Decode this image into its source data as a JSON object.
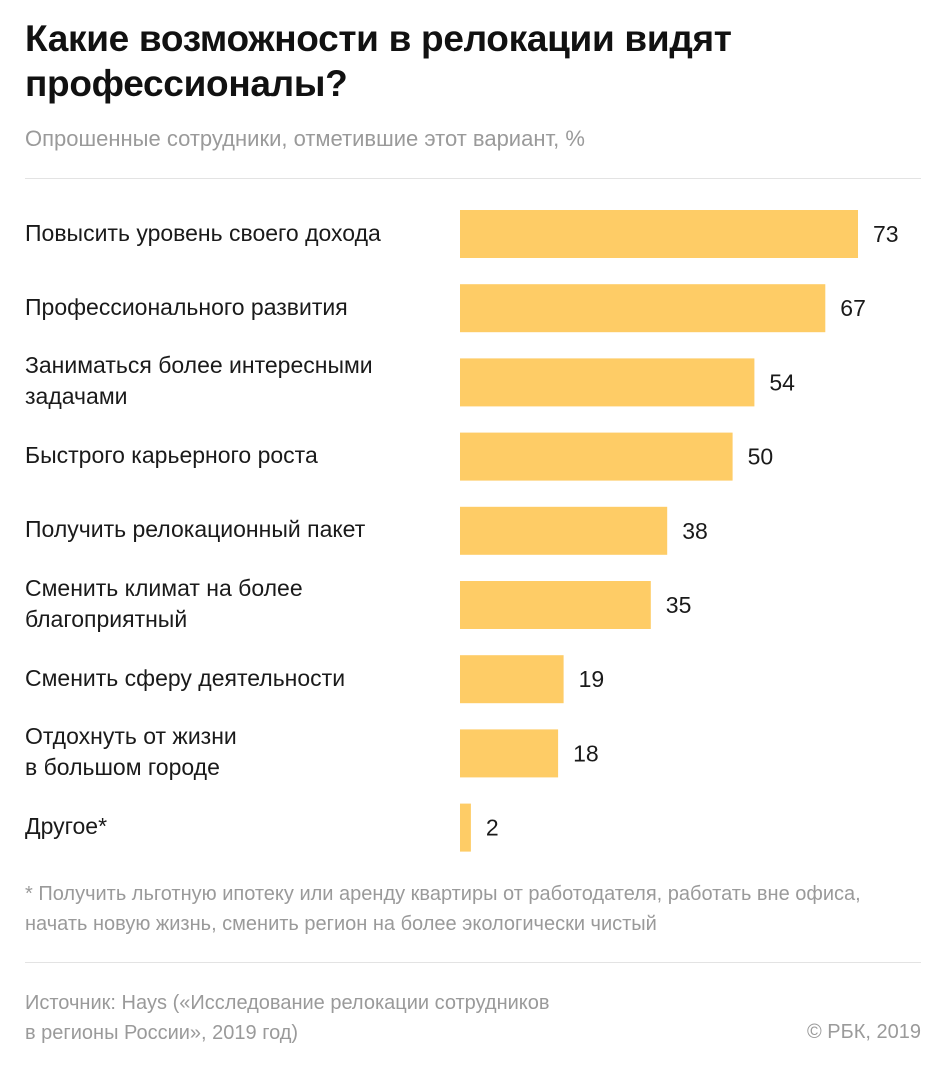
{
  "header": {
    "title": "Какие возможности в релокации видят профессионалы?",
    "subtitle": "Опрошенные сотрудники, отметившие этот вариант, %"
  },
  "chart_data": {
    "type": "bar",
    "orientation": "horizontal",
    "title": "Какие возможности в релокации видят профессионалы?",
    "subtitle": "Опрошенные сотрудники, отметившие этот вариант, %",
    "categories": [
      "Повысить уровень своего дохода",
      "Профессионального развития",
      "Заниматься более интересными\nзадачами",
      "Быстрого карьерного роста",
      "Получить релокационный пакет",
      "Сменить климат на более\nблагоприятный",
      "Сменить сферу деятельности",
      "Отдохнуть от жизни\nв большом городе",
      "Другое*"
    ],
    "values": [
      73,
      67,
      54,
      50,
      38,
      35,
      19,
      18,
      2
    ],
    "xlim": [
      0,
      73
    ],
    "bar_color": "#FECC66",
    "grid": false,
    "legend": "none",
    "data_labels": true
  },
  "footnote": "* Получить льготную ипотеку или аренду квартиры от работодателя, работать вне офиса, начать новую жизнь, сменить регион на более экологически чистый",
  "footer": {
    "source": "Источник: Hays («Исследование релокации сотрудников\nв регионы России», 2019 год)",
    "copyright": "© РБК, 2019"
  },
  "colors": {
    "bar": "#FECC66",
    "text": "#1a1a1a",
    "muted": "#9a9a9a",
    "rule": "#e3e3e3"
  }
}
